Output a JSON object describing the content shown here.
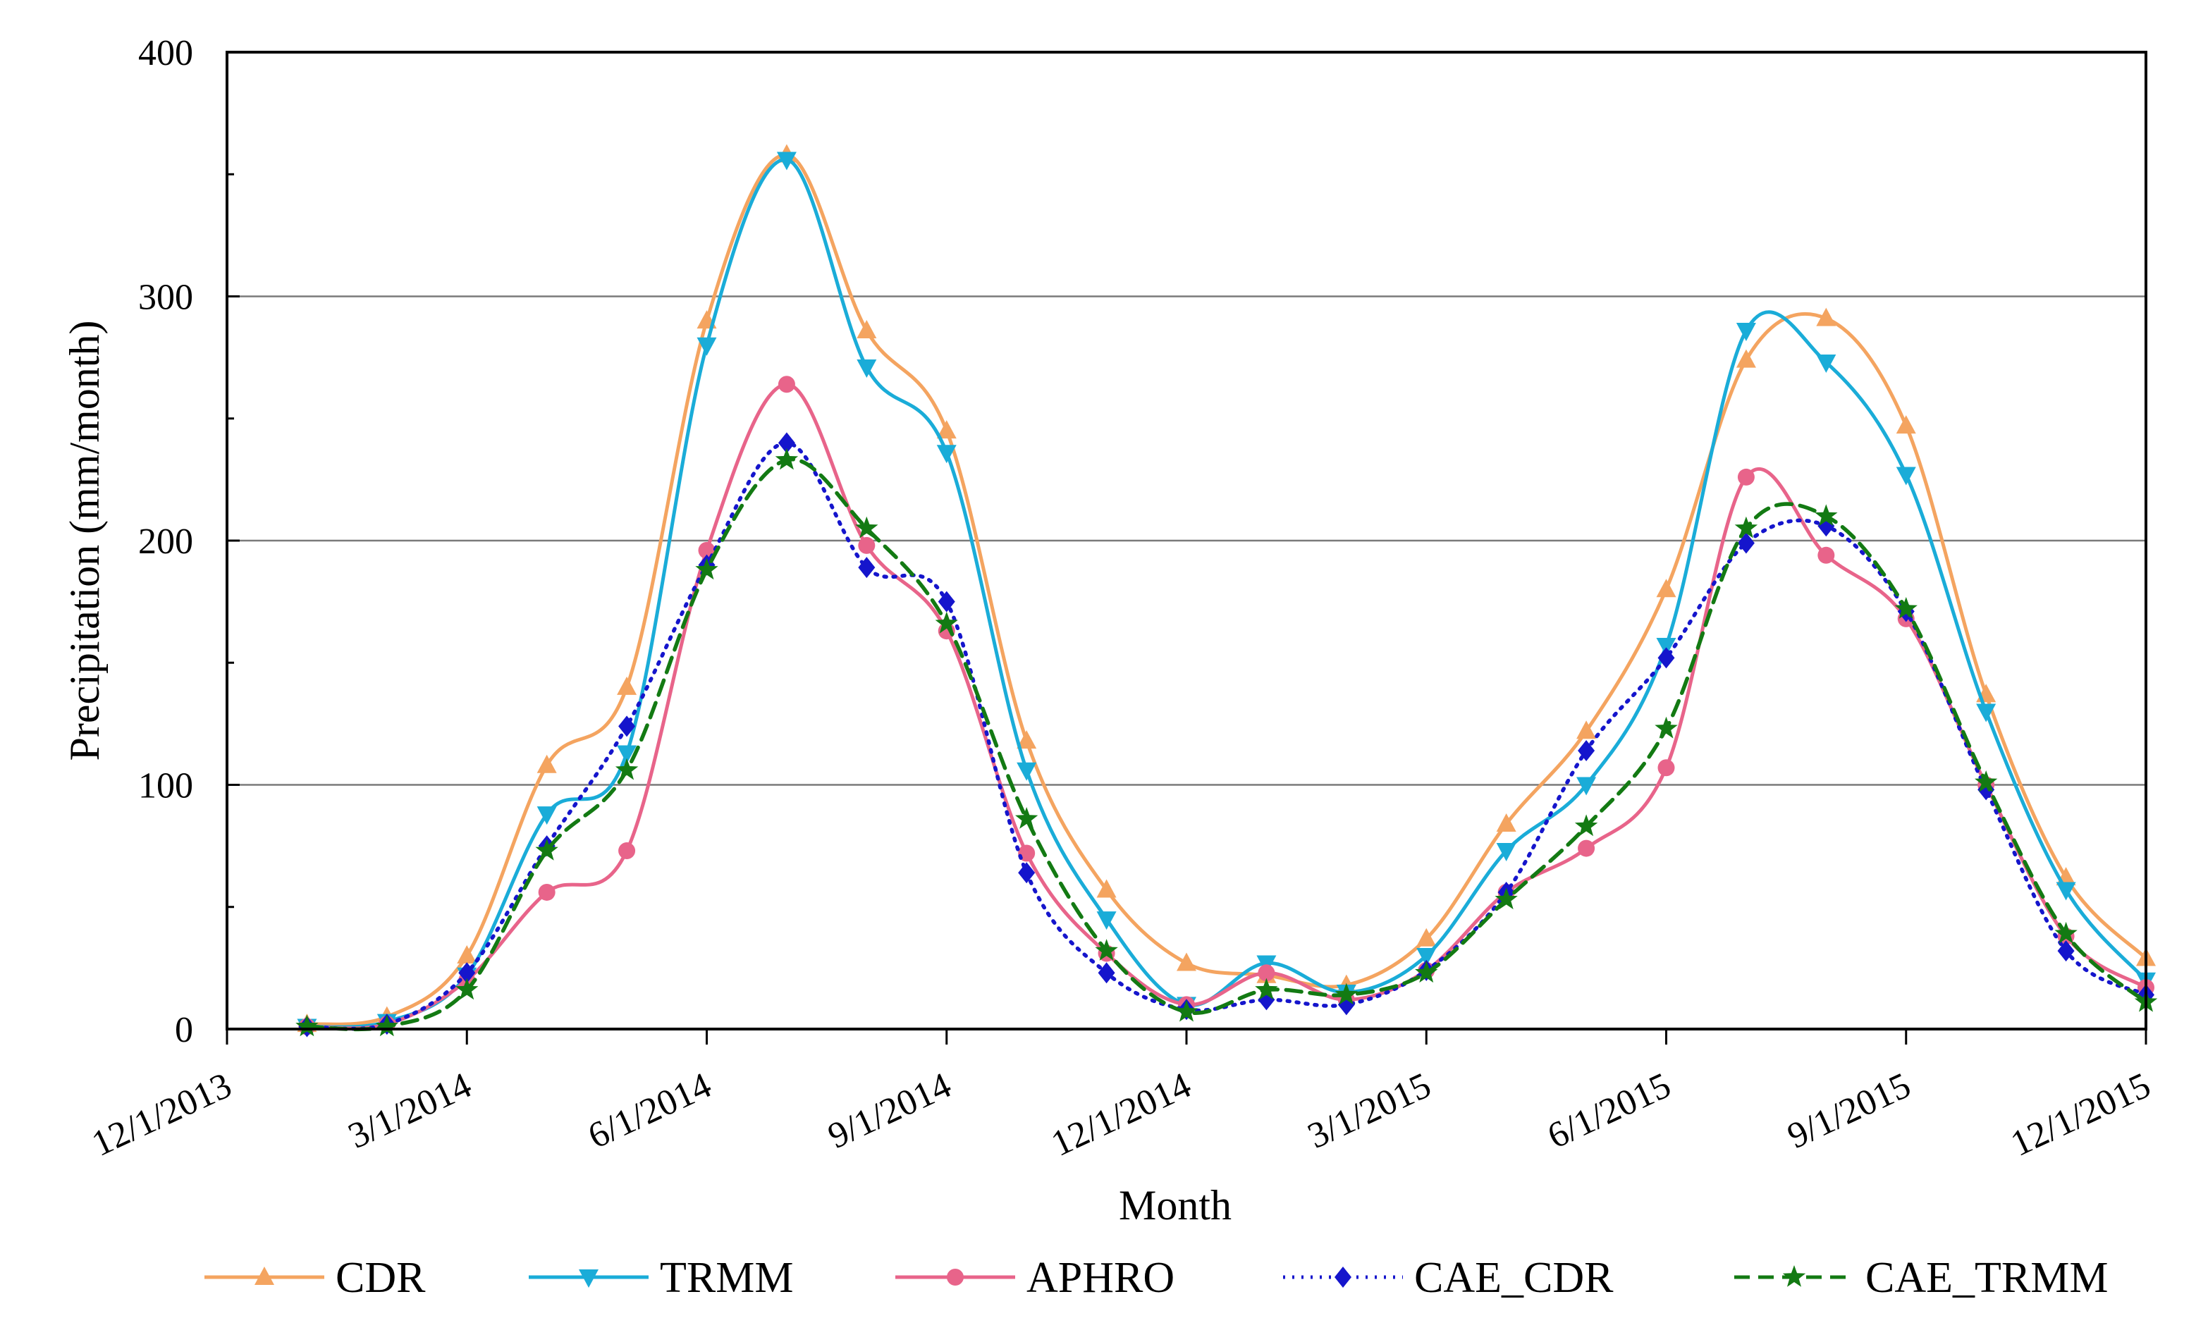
{
  "chart_data": {
    "type": "line",
    "title": "",
    "xlabel": "Month",
    "ylabel": "Precipitation (mm/month)",
    "ylim": [
      0,
      400
    ],
    "yticks": [
      0,
      100,
      200,
      300,
      400
    ],
    "ytick_labels": [
      "0",
      "100",
      "200",
      "300",
      "400"
    ],
    "xlim_months": [
      0,
      24
    ],
    "xtick_months": [
      0,
      3,
      6,
      9,
      12,
      15,
      18,
      21,
      24
    ],
    "xtick_labels": [
      "12/1/2013",
      "3/1/2014",
      "6/1/2014",
      "9/1/2014",
      "12/1/2014",
      "3/1/2015",
      "6/1/2015",
      "9/1/2015",
      "12/1/2015"
    ],
    "grid": "horizontal at 100, 200, 300",
    "legend_position": "bottom",
    "x_months": [
      1,
      2,
      3,
      4,
      5,
      6,
      7,
      8,
      9,
      10,
      11,
      12,
      13,
      14,
      15,
      16,
      17,
      18,
      19,
      20,
      21,
      22,
      23,
      24
    ],
    "series": [
      {
        "name": "CDR",
        "color": "#F4A460",
        "dash": "solid",
        "marker": "triangle-up",
        "values": [
          2,
          5,
          30,
          108,
          140,
          290,
          358,
          286,
          245,
          118,
          57,
          27,
          22,
          18,
          37,
          84,
          122,
          180,
          274,
          291,
          247,
          137,
          62,
          29
        ]
      },
      {
        "name": "TRMM",
        "color": "#1AACD8",
        "dash": "solid",
        "marker": "triangle-down",
        "values": [
          1,
          3,
          22,
          88,
          113,
          280,
          356,
          271,
          236,
          106,
          45,
          10,
          27,
          15,
          30,
          73,
          100,
          157,
          286,
          273,
          227,
          130,
          57,
          20
        ]
      },
      {
        "name": "APHRO",
        "color": "#E8648A",
        "dash": "solid",
        "marker": "circle",
        "values": [
          1,
          2,
          20,
          56,
          73,
          196,
          264,
          198,
          163,
          72,
          31,
          10,
          23,
          12,
          24,
          56,
          74,
          107,
          226,
          194,
          168,
          100,
          38,
          17
        ]
      },
      {
        "name": "CAE_CDR",
        "color": "#1515CC",
        "dash": "dotted",
        "marker": "diamond",
        "values": [
          1,
          2,
          23,
          75,
          124,
          190,
          240,
          189,
          175,
          64,
          23,
          8,
          12,
          10,
          24,
          56,
          114,
          152,
          199,
          206,
          171,
          98,
          32,
          14
        ]
      },
      {
        "name": "CAE_TRMM",
        "color": "#137A13",
        "dash": "dashed",
        "marker": "star",
        "values": [
          1,
          1,
          16,
          73,
          106,
          188,
          233,
          205,
          166,
          86,
          32,
          7,
          16,
          14,
          23,
          53,
          83,
          123,
          205,
          210,
          172,
          101,
          39,
          11
        ]
      }
    ]
  }
}
